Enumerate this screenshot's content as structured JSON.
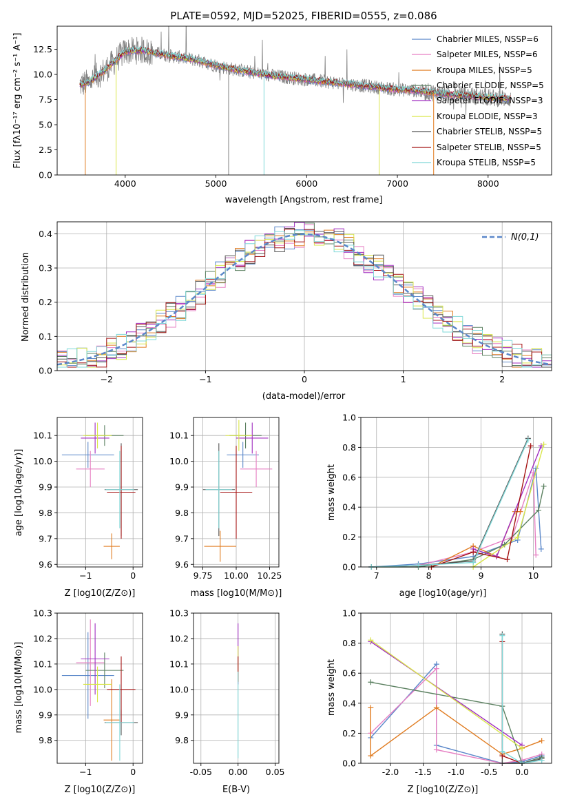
{
  "chart_data": [
    {
      "type": "line",
      "title": "PLATE=0592, MJD=52025, FIBERID=0555, z=0.086",
      "xlabel": "wavelength [Angstrom, rest frame]",
      "ylabel": "Flux [fλ10⁻¹⁷ erg cm⁻² s⁻¹ A⁻¹]",
      "xlim": [
        3250,
        8700
      ],
      "ylim": [
        0,
        14.8
      ],
      "xticks": [
        4000,
        5000,
        6000,
        7000,
        8000
      ],
      "yticks": [
        0.0,
        2.5,
        5.0,
        7.5,
        10.0,
        12.5
      ],
      "legend_position": "top-right",
      "grid": false,
      "data": {
        "wavelength": [
          3500,
          3600,
          3800,
          4000,
          4200,
          4400,
          4600,
          4800,
          5000,
          5200,
          5400,
          5600,
          5800,
          6000,
          6200,
          6400,
          6600,
          6800,
          7000,
          7200,
          7400,
          7600,
          7800,
          8000,
          8200
        ],
        "flux": [
          9.0,
          9.2,
          10.6,
          12.3,
          12.4,
          12.0,
          11.7,
          11.4,
          10.9,
          10.5,
          10.2,
          9.9,
          9.7,
          9.5,
          9.3,
          9.1,
          8.9,
          8.7,
          8.5,
          8.4,
          8.2,
          8.0,
          7.9,
          7.7,
          7.6
        ]
      },
      "series": [
        {
          "name": "Chabrier MILES, NSSP=6",
          "color": "#5a87c9"
        },
        {
          "name": "Salpeter MILES, NSSP=6",
          "color": "#e67fc3"
        },
        {
          "name": "Kroupa MILES, NSSP=5",
          "color": "#e07b1f"
        },
        {
          "name": "Chabrier ELODIE, NSSP=5",
          "color": "#5b8060"
        },
        {
          "name": "Salpeter ELODIE, NSSP=3",
          "color": "#a02dc0"
        },
        {
          "name": "Kroupa ELODIE, NSSP=3",
          "color": "#d9e64a"
        },
        {
          "name": "Chabrier STELIB, NSSP=5",
          "color": "#555555"
        },
        {
          "name": "Salpeter STELIB, NSSP=5",
          "color": "#a51414"
        },
        {
          "name": "Kroupa STELIB, NSSP=5",
          "color": "#7fd8d8"
        }
      ]
    },
    {
      "type": "line",
      "xlabel": "(data-model)/error",
      "ylabel": "Normed distribution",
      "xlim": [
        -2.5,
        2.5
      ],
      "ylim": [
        0,
        0.435
      ],
      "xticks": [
        -2,
        -1,
        0,
        1,
        2
      ],
      "yticks": [
        0.0,
        0.1,
        0.2,
        0.3,
        0.4
      ],
      "grid": true,
      "legend_position": "top-right",
      "reference_curve": {
        "name": "N(0,1)",
        "mean": 0,
        "sigma": 1,
        "color": "#5a87c9"
      },
      "histogram_bins": [
        -2.5,
        -2.4,
        -2.3,
        -2.2,
        -2.1,
        -2.0,
        -1.9,
        -1.8,
        -1.7,
        -1.6,
        -1.5,
        -1.4,
        -1.3,
        -1.2,
        -1.1,
        -1.0,
        -0.9,
        -0.8,
        -0.7,
        -0.6,
        -0.5,
        -0.4,
        -0.3,
        -0.2,
        -0.1,
        0.0,
        0.1,
        0.2,
        0.3,
        0.4,
        0.5,
        0.6,
        0.7,
        0.8,
        0.9,
        1.0,
        1.1,
        1.2,
        1.3,
        1.4,
        1.5,
        1.6,
        1.7,
        1.8,
        1.9,
        2.0,
        2.1,
        2.2,
        2.3,
        2.4,
        2.5
      ],
      "series_colors": [
        "#5a87c9",
        "#e67fc3",
        "#e07b1f",
        "#5b8060",
        "#a02dc0",
        "#d9e64a",
        "#555555",
        "#a51414",
        "#7fd8d8"
      ]
    },
    {
      "type": "scatter",
      "xlabel": "Z [log10(Z/Z⊙)]",
      "ylabel": "age  [log10(age/yr)]",
      "xlim": [
        -1.6,
        0.2
      ],
      "ylim": [
        9.59,
        10.17
      ],
      "xticks": [
        -1,
        0
      ],
      "yticks": [
        9.6,
        9.7,
        9.8,
        9.9,
        10.0,
        10.1
      ],
      "grid": true,
      "points": [
        {
          "x": -0.95,
          "y": 10.025,
          "xerr": 0.55,
          "yerr": 0.05,
          "color": "#5a87c9"
        },
        {
          "x": -0.9,
          "y": 9.97,
          "xerr": 0.3,
          "yerr": 0.07,
          "color": "#e67fc3"
        },
        {
          "x": -0.45,
          "y": 9.67,
          "xerr": 0.17,
          "yerr": 0.05,
          "color": "#e07b1f"
        },
        {
          "x": -0.6,
          "y": 10.1,
          "xerr": 0.4,
          "yerr": 0.04,
          "color": "#5b8060"
        },
        {
          "x": -0.8,
          "y": 10.09,
          "xerr": 0.3,
          "yerr": 0.06,
          "color": "#a02dc0"
        },
        {
          "x": -0.75,
          "y": 10.1,
          "xerr": 0.3,
          "yerr": 0.05,
          "color": "#d9e64a"
        },
        {
          "x": -0.25,
          "y": 9.89,
          "xerr": 0.35,
          "yerr": 0.18,
          "color": "#555555"
        },
        {
          "x": -0.25,
          "y": 9.88,
          "xerr": 0.3,
          "yerr": 0.18,
          "color": "#a51414"
        },
        {
          "x": -0.28,
          "y": 9.89,
          "xerr": 0.3,
          "yerr": 0.15,
          "color": "#7fd8d8"
        }
      ]
    },
    {
      "type": "scatter",
      "xlabel": "mass [log10(M/M⊙)]",
      "xlim": [
        9.68,
        10.32
      ],
      "ylim": [
        9.59,
        10.17
      ],
      "xticks": [
        9.75,
        10.0,
        10.25
      ],
      "yticks": [
        9.6,
        9.7,
        9.8,
        9.9,
        10.0,
        10.1
      ],
      "grid": true,
      "points": [
        {
          "x": 10.05,
          "y": 10.025,
          "xerr": 0.12,
          "yerr": 0.05,
          "color": "#5a87c9"
        },
        {
          "x": 10.15,
          "y": 9.97,
          "xerr": 0.12,
          "yerr": 0.07,
          "color": "#e67fc3"
        },
        {
          "x": 9.88,
          "y": 9.67,
          "xerr": 0.12,
          "yerr": 0.06,
          "color": "#e07b1f"
        },
        {
          "x": 10.07,
          "y": 10.1,
          "xerr": 0.12,
          "yerr": 0.05,
          "color": "#5b8060"
        },
        {
          "x": 10.12,
          "y": 10.09,
          "xerr": 0.12,
          "yerr": 0.06,
          "color": "#a02dc0"
        },
        {
          "x": 10.02,
          "y": 10.1,
          "xerr": 0.1,
          "yerr": 0.06,
          "color": "#d9e64a"
        },
        {
          "x": 9.87,
          "y": 9.89,
          "xerr": 0.12,
          "yerr": 0.18,
          "color": "#555555"
        },
        {
          "x": 10.0,
          "y": 9.88,
          "xerr": 0.12,
          "yerr": 0.18,
          "color": "#a51414"
        },
        {
          "x": 9.87,
          "y": 9.89,
          "xerr": 0.1,
          "yerr": 0.15,
          "color": "#7fd8d8"
        }
      ]
    },
    {
      "type": "line",
      "xlabel": "age  [log10(age/yr)]",
      "ylabel": "mass weight",
      "xlim": [
        6.7,
        10.35
      ],
      "ylim": [
        0,
        1.0
      ],
      "xticks": [
        7,
        8,
        9,
        10
      ],
      "yticks": [
        0.0,
        0.2,
        0.4,
        0.6,
        0.8,
        1.0
      ],
      "grid": true,
      "series": [
        {
          "color": "#5a87c9",
          "x": [
            6.9,
            7.8,
            8.85,
            9.7,
            10.05,
            10.15
          ],
          "y": [
            0.0,
            0.02,
            0.07,
            0.18,
            0.66,
            0.12
          ]
        },
        {
          "color": "#e67fc3",
          "x": [
            6.9,
            7.8,
            8.85,
            9.6,
            10.0,
            10.05
          ],
          "y": [
            0.0,
            0.01,
            0.1,
            0.2,
            0.63,
            0.08
          ]
        },
        {
          "color": "#e07b1f",
          "x": [
            8.05,
            8.85,
            9.3,
            9.65,
            9.75
          ],
          "y": [
            0.0,
            0.14,
            0.07,
            0.37,
            0.37
          ]
        },
        {
          "color": "#5b8060",
          "x": [
            6.9,
            7.8,
            8.85,
            9.45,
            10.1,
            10.2
          ],
          "y": [
            0.0,
            0.0,
            0.05,
            0.15,
            0.38,
            0.54
          ]
        },
        {
          "color": "#a02dc0",
          "x": [
            8.85,
            9.3,
            10.15
          ],
          "y": [
            0.12,
            0.07,
            0.81
          ]
        },
        {
          "color": "#d9e64a",
          "x": [
            8.85,
            9.7,
            10.2
          ],
          "y": [
            0.0,
            0.2,
            0.82
          ]
        },
        {
          "color": "#555555",
          "x": [
            6.9,
            7.8,
            8.85,
            9.9
          ],
          "y": [
            0.0,
            0.01,
            0.04,
            0.86
          ]
        },
        {
          "color": "#a51414",
          "x": [
            8.05,
            8.85,
            9.5,
            9.95
          ],
          "y": [
            0.0,
            0.1,
            0.05,
            0.81
          ]
        },
        {
          "color": "#7fd8d8",
          "x": [
            6.9,
            7.8,
            8.85,
            9.9
          ],
          "y": [
            0.0,
            0.01,
            0.03,
            0.85
          ]
        }
      ]
    },
    {
      "type": "scatter",
      "xlabel": "Z [log10(Z/Z⊙)]",
      "ylabel": "mass [log10(M/M⊙)]",
      "xlim": [
        -1.6,
        0.2
      ],
      "ylim": [
        9.71,
        10.3
      ],
      "xticks": [
        -1,
        0
      ],
      "yticks": [
        9.8,
        9.9,
        10.0,
        10.1,
        10.2,
        10.3
      ],
      "grid": true,
      "points": [
        {
          "x": -0.95,
          "y": 10.055,
          "xerr": 0.55,
          "yerr": 0.17,
          "color": "#5a87c9"
        },
        {
          "x": -0.9,
          "y": 10.105,
          "xerr": 0.3,
          "yerr": 0.17,
          "color": "#e67fc3"
        },
        {
          "x": -0.45,
          "y": 9.88,
          "xerr": 0.17,
          "yerr": 0.16,
          "color": "#e07b1f"
        },
        {
          "x": -0.6,
          "y": 10.075,
          "xerr": 0.4,
          "yerr": 0.07,
          "color": "#5b8060"
        },
        {
          "x": -0.8,
          "y": 10.12,
          "xerr": 0.3,
          "yerr": 0.14,
          "color": "#a02dc0"
        },
        {
          "x": -0.75,
          "y": 10.02,
          "xerr": 0.3,
          "yerr": 0.07,
          "color": "#d9e64a"
        },
        {
          "x": -0.25,
          "y": 9.87,
          "xerr": 0.35,
          "yerr": 0.05,
          "color": "#555555"
        },
        {
          "x": -0.25,
          "y": 10.0,
          "xerr": 0.3,
          "yerr": 0.13,
          "color": "#a51414"
        },
        {
          "x": -0.28,
          "y": 9.87,
          "xerr": 0.3,
          "yerr": 0.15,
          "color": "#7fd8d8"
        }
      ]
    },
    {
      "type": "scatter",
      "xlabel": "E(B-V)",
      "xlim": [
        -0.06,
        0.055
      ],
      "ylim": [
        9.71,
        10.3
      ],
      "xticks": [
        -0.05,
        0.0,
        0.05
      ],
      "yticks": [
        9.8,
        9.9,
        10.0,
        10.1,
        10.2,
        10.3
      ],
      "grid": true,
      "points": [
        {
          "x": 0.0,
          "y": 10.14,
          "yerr": 0.12,
          "color": "#a02dc0"
        },
        {
          "x": 0.0,
          "y": 10.1,
          "yerr": 0.07,
          "color": "#d9e64a"
        },
        {
          "x": 0.0,
          "y": 10.08,
          "yerr": 0.05,
          "color": "#a51414"
        },
        {
          "x": 0.0,
          "y": 9.9,
          "yerr": 0.17,
          "color": "#7fd8d8"
        }
      ]
    },
    {
      "type": "line",
      "xlabel": "Z [log10(Z/Z⊙)]",
      "ylabel": "mass weight",
      "xlim": [
        -2.45,
        0.45
      ],
      "ylim": [
        0,
        1.0
      ],
      "xticks": [
        -2.0,
        -1.5,
        -1.0,
        -0.5,
        0.0
      ],
      "yticks": [
        0.0,
        0.2,
        0.4,
        0.6,
        0.8,
        1.0
      ],
      "grid": true,
      "series": [
        {
          "color": "#5a87c9",
          "x": [
            -2.3,
            -1.3,
            -1.3,
            -0.3,
            0.0,
            0.3
          ],
          "y": [
            0.17,
            0.66,
            0.12,
            0.0,
            0.01,
            0.05
          ]
        },
        {
          "color": "#e67fc3",
          "x": [
            -2.3,
            -1.3,
            -1.3,
            -0.3,
            0.0,
            0.3
          ],
          "y": [
            0.2,
            0.63,
            0.09,
            0.0,
            0.02,
            0.06
          ]
        },
        {
          "color": "#e07b1f",
          "x": [
            -2.3,
            -2.3,
            -1.3,
            -0.3,
            0.0,
            0.3
          ],
          "y": [
            0.37,
            0.05,
            0.37,
            0.06,
            0.1,
            0.15
          ]
        },
        {
          "color": "#5b8060",
          "x": [
            -2.3,
            -0.3,
            0.0,
            0.3
          ],
          "y": [
            0.54,
            0.38,
            0.0,
            0.04
          ]
        },
        {
          "color": "#a02dc0",
          "x": [
            -2.3,
            0.0
          ],
          "y": [
            0.81,
            0.12
          ]
        },
        {
          "color": "#d9e64a",
          "x": [
            -2.3,
            0.0
          ],
          "y": [
            0.82,
            0.1
          ]
        },
        {
          "color": "#555555",
          "x": [
            -0.3,
            -0.3,
            0.0,
            0.3
          ],
          "y": [
            0.86,
            0.0,
            0.0,
            0.03
          ]
        },
        {
          "color": "#a51414",
          "x": [
            -0.3,
            -0.3,
            0.0
          ],
          "y": [
            0.81,
            0.05,
            0.0
          ]
        },
        {
          "color": "#7fd8d8",
          "x": [
            -0.3,
            -0.3,
            0.0,
            0.3
          ],
          "y": [
            0.85,
            0.08,
            0.0,
            0.02
          ]
        }
      ]
    }
  ]
}
